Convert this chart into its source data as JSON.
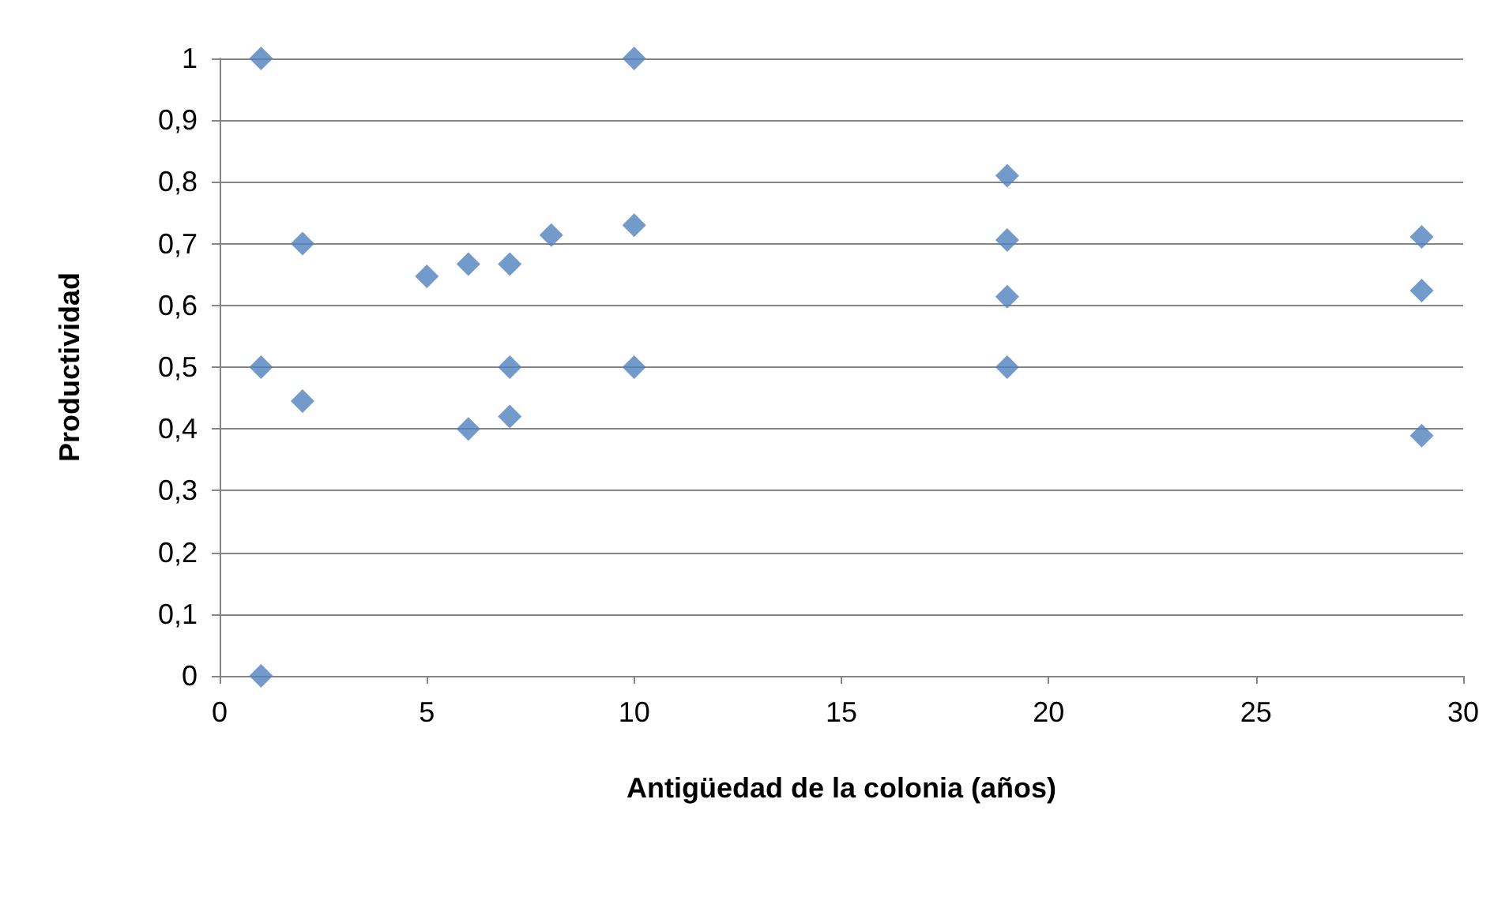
{
  "chart_data": {
    "type": "scatter",
    "xlabel": "Antigüedad de la colonia (años)",
    "ylabel": "Productividad",
    "x": [
      1,
      1,
      1,
      2,
      2,
      5,
      6,
      6,
      7,
      7,
      7,
      8,
      10,
      10,
      10,
      19,
      19,
      19,
      19,
      29,
      29,
      29
    ],
    "values": [
      1,
      0.5,
      0,
      0.7,
      0.445,
      0.647,
      0.667,
      0.4,
      0.667,
      0.5,
      0.42,
      0.714,
      1,
      0.73,
      0.5,
      0.81,
      0.706,
      0.614,
      0.5,
      0.711,
      0.624,
      0.389
    ],
    "color": "#4f81bd",
    "marker": "diamond",
    "grid": "y",
    "xlim": [
      0,
      30
    ],
    "xticks": [
      0,
      5,
      10,
      15,
      20,
      25,
      30
    ],
    "ylim": [
      0,
      1
    ],
    "yticks": [
      0,
      {
        "value": 0.1,
        "label": "0,1"
      },
      {
        "value": 0.2,
        "label": "0,2"
      },
      {
        "value": 0.3,
        "label": "0,3"
      },
      {
        "value": 0.4,
        "label": "0,4"
      },
      {
        "value": 0.5,
        "label": "0,5"
      },
      {
        "value": 0.6,
        "label": "0,6"
      },
      {
        "value": 0.7,
        "label": "0,7"
      },
      {
        "value": 0.8,
        "label": "0,8"
      },
      {
        "value": 0.9,
        "label": "0,9"
      },
      1
    ]
  }
}
